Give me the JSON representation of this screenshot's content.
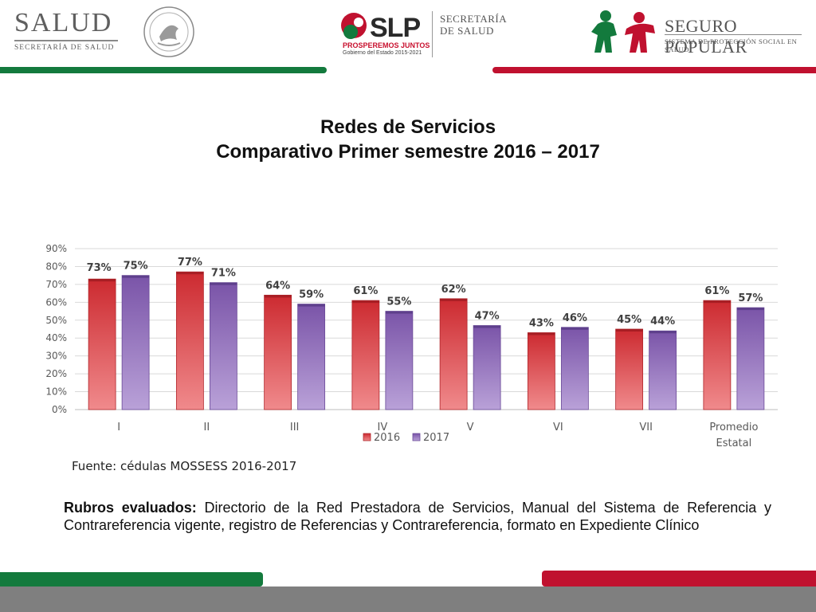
{
  "header": {
    "salud_logo": "SALUD",
    "salud_subtitle": "SECRETARÍA DE SALUD",
    "slp_logo": "SLP",
    "slp_slogan": "PROSPEREMOS JUNTOS",
    "slp_gobierno": "Gobierno del Estado 2015-2021",
    "secretaria_line1": "SECRETARÍA",
    "secretaria_line2": "DE SALUD",
    "seguro_popular": "SEGURO POPULAR",
    "seguro_popular_sub": "SISTEMA DE PROTECCIÓN SOCIAL EN SALUD"
  },
  "colors": {
    "green": "#137a3d",
    "red": "#c0112f",
    "series_2016": "#d9353a",
    "series_2017": "#8e66b8",
    "footer_gray": "#7f7f7f"
  },
  "title": {
    "line1": "Redes de Servicios",
    "line2": "Comparativo Primer semestre  2016 – 2017"
  },
  "chart_data": {
    "type": "bar",
    "categories": [
      "I",
      "II",
      "III",
      "IV",
      "V",
      "VI",
      "VII",
      "Promedio Estatal"
    ],
    "series": [
      {
        "name": "2016",
        "values": [
          73,
          77,
          64,
          61,
          62,
          43,
          45,
          61
        ]
      },
      {
        "name": "2017",
        "values": [
          75,
          71,
          59,
          55,
          47,
          46,
          44,
          57
        ]
      }
    ],
    "data_labels": {
      "2016": [
        "73%",
        "77%",
        "64%",
        "61%",
        "62%",
        "43%",
        "45%",
        "61%"
      ],
      "2017": [
        "75%",
        "71%",
        "59%",
        "55%",
        "47%",
        "46%",
        "44%",
        "57%"
      ]
    },
    "ylim": [
      0,
      90
    ],
    "y_ticks": [
      "0%",
      "10%",
      "20%",
      "30%",
      "40%",
      "50%",
      "60%",
      "70%",
      "80%",
      "90%"
    ],
    "grid": true,
    "legend_position": "bottom"
  },
  "source": "Fuente: cédulas MOSSESS 2016-2017",
  "rubros": {
    "label": "Rubros evaluados:",
    "text": " Directorio de la Red Prestadora de Servicios, Manual del Sistema de Referencia y Contrareferencia vigente, registro de Referencias y Contrareferencia, formato en Expediente Clínico"
  }
}
